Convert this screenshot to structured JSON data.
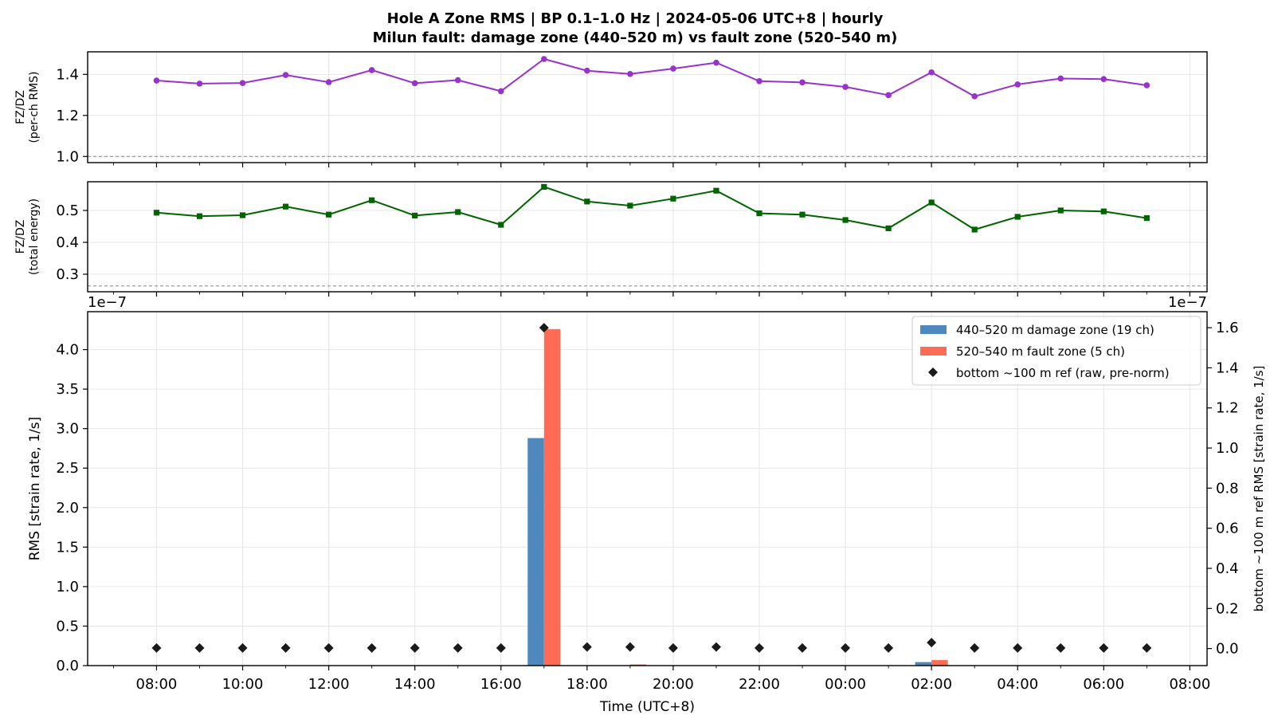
{
  "title_line1": "Hole A Zone RMS  |  BP 0.1–1.0 Hz  |  2024-05-06 UTC+8  |  hourly",
  "title_line2": "Milun fault: damage zone (440–520 m) vs fault zone (520–540 m)",
  "colors": {
    "ratio_rms": "#9932cc",
    "ratio_energy": "#006400",
    "damage_zone": "#4f88bd",
    "fault_zone": "#ff6b55",
    "reference": "#1a1a1a",
    "grid": "#e6e6e6",
    "ref_line": "#888888"
  },
  "chart_data": [
    {
      "type": "line",
      "xlabel": "",
      "ylabel": "FZ/DZ",
      "ylabel_sub": "(per-ch RMS)",
      "x": [
        0,
        1,
        2,
        3,
        4,
        5,
        6,
        7,
        8,
        9,
        10,
        11,
        12,
        13,
        14,
        15,
        16,
        17,
        18,
        19,
        20,
        21,
        22,
        23
      ],
      "y": [
        1.37,
        1.355,
        1.358,
        1.397,
        1.362,
        1.421,
        1.357,
        1.372,
        1.318,
        1.475,
        1.418,
        1.402,
        1.428,
        1.457,
        1.367,
        1.361,
        1.339,
        1.299,
        1.41,
        1.293,
        1.351,
        1.38,
        1.377,
        1.347
      ],
      "ylim": [
        0.97,
        1.51
      ],
      "yticks": [
        1.0,
        1.2,
        1.4
      ],
      "reference_line": 1.0,
      "marker": "circle",
      "grid": true
    },
    {
      "type": "line",
      "xlabel": "",
      "ylabel": "FZ/DZ",
      "ylabel_sub": "(total energy)",
      "x": [
        0,
        1,
        2,
        3,
        4,
        5,
        6,
        7,
        8,
        9,
        10,
        11,
        12,
        13,
        14,
        15,
        16,
        17,
        18,
        19,
        20,
        21,
        22,
        23
      ],
      "y": [
        0.493,
        0.482,
        0.485,
        0.512,
        0.487,
        0.532,
        0.484,
        0.495,
        0.455,
        0.574,
        0.528,
        0.515,
        0.537,
        0.562,
        0.491,
        0.487,
        0.47,
        0.444,
        0.525,
        0.44,
        0.48,
        0.5,
        0.497,
        0.476
      ],
      "ylim": [
        0.245,
        0.59
      ],
      "yticks": [
        0.3,
        0.4,
        0.5
      ],
      "reference_line": 0.263,
      "marker": "square",
      "grid": true
    },
    {
      "type": "bar",
      "xlabel": "Time (UTC+8)",
      "ylabel": "RMS  [strain rate, 1/s]",
      "ylabel_right": "bottom ~100 m ref RMS  [strain rate, 1/s]",
      "y_offset_label_left": "1e−7",
      "y_offset_label_right": "1e−7",
      "x": [
        0,
        1,
        2,
        3,
        4,
        5,
        6,
        7,
        8,
        9,
        10,
        11,
        12,
        13,
        14,
        15,
        16,
        17,
        18,
        19,
        20,
        21,
        22,
        23
      ],
      "xlim": [
        -1.6,
        24.4
      ],
      "xtick_positions": [
        0,
        2,
        4,
        6,
        8,
        10,
        12,
        14,
        16,
        18,
        20,
        22,
        24
      ],
      "xtick_labels": [
        "08:00",
        "10:00",
        "12:00",
        "14:00",
        "16:00",
        "18:00",
        "20:00",
        "22:00",
        "00:00",
        "02:00",
        "04:00",
        "06:00",
        "08:00"
      ],
      "ylim": [
        0,
        4.48
      ],
      "yticks": [
        0.0,
        0.5,
        1.0,
        1.5,
        2.0,
        2.5,
        3.0,
        3.5,
        4.0
      ],
      "ylim_right": [
        -0.085,
        1.68
      ],
      "yticks_right": [
        0.0,
        0.2,
        0.4,
        0.6,
        0.8,
        1.0,
        1.2,
        1.4,
        1.6
      ],
      "legend_position": "upper-right",
      "grid": true,
      "series": [
        {
          "name": "440–520 m  damage zone (19 ch)",
          "axis": "left",
          "kind": "bar",
          "values": [
            0,
            0,
            0,
            0,
            0,
            0,
            0,
            0,
            0,
            2.88,
            0,
            0,
            0,
            0,
            0,
            0,
            0,
            0,
            0.045,
            0,
            0,
            0,
            0,
            0
          ]
        },
        {
          "name": "520–540 m  fault zone (5 ch)",
          "axis": "left",
          "kind": "bar",
          "values": [
            0,
            0,
            0,
            0,
            0,
            0,
            0,
            0,
            0,
            4.26,
            0,
            0.015,
            0,
            0,
            0,
            0,
            0,
            0,
            0.07,
            0,
            0,
            0,
            0,
            0
          ]
        },
        {
          "name": "bottom ~100 m ref (raw, pre-norm)",
          "axis": "right",
          "kind": "scatter",
          "values": [
            0.003,
            0.003,
            0.003,
            0.003,
            0.003,
            0.003,
            0.003,
            0.003,
            0.003,
            1.6,
            0.008,
            0.008,
            0.003,
            0.008,
            0.003,
            0.003,
            0.003,
            0.003,
            0.03,
            0.003,
            0.003,
            0.003,
            0.003,
            0.003
          ]
        }
      ]
    }
  ]
}
